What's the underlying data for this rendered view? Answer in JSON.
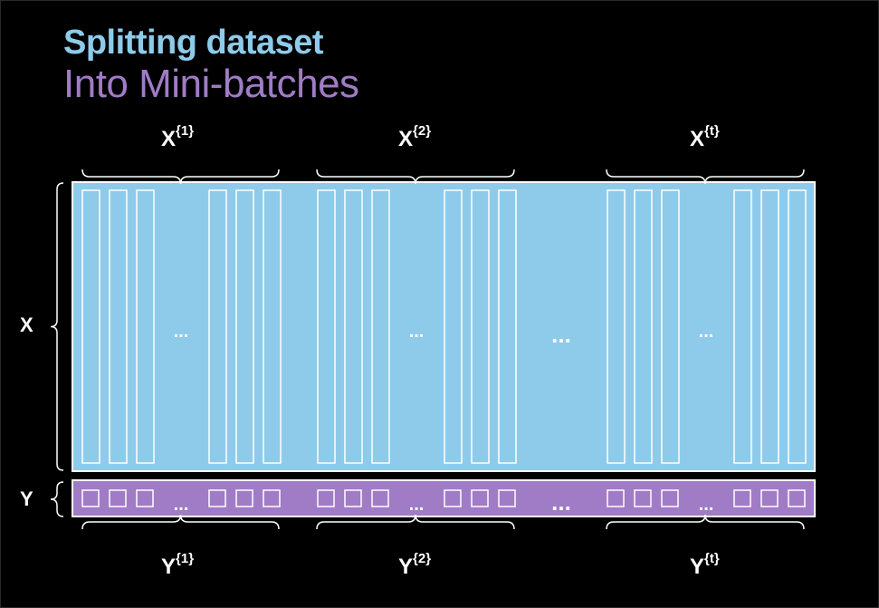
{
  "title": "Splitting dataset",
  "subtitle": "Into Mini-batches",
  "x_label": "X",
  "y_label": "Y",
  "ellipsis": "...",
  "colors": {
    "background": "#000000",
    "x_block": "#8ecbea",
    "y_block": "#a07cc6",
    "outline": "#ffffff",
    "title": "#8ecbea",
    "subtitle": "#a07cc6"
  },
  "batches": [
    {
      "x_name": "X",
      "x_sup": "{1}",
      "y_name": "Y",
      "y_sup": "{1}"
    },
    {
      "x_name": "X",
      "x_sup": "{2}",
      "y_name": "Y",
      "y_sup": "{2}"
    },
    {
      "x_name": "X",
      "x_sup": "{t}",
      "y_name": "Y",
      "y_sup": "{t}"
    }
  ]
}
